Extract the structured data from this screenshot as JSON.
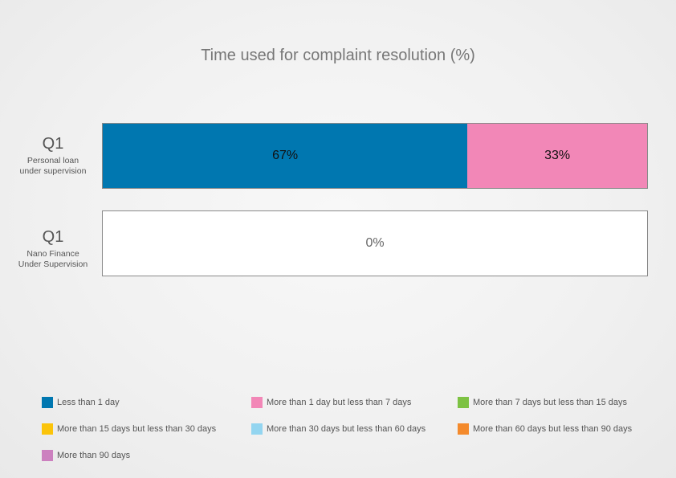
{
  "chart_data": {
    "type": "bar",
    "orientation": "horizontal",
    "stacked": true,
    "percent_scale": true,
    "title": "Time used for complaint resolution (%)",
    "categories": [
      {
        "label": "Q1",
        "sublabel": "Personal loan\nunder supervision"
      },
      {
        "label": "Q1",
        "sublabel": "Nano Finance\nUnder Supervision"
      }
    ],
    "series": [
      {
        "name": "Less than 1 day",
        "color": "#0077b0",
        "values": [
          67,
          0
        ]
      },
      {
        "name": "More than 1 day but less than 7 days",
        "color": "#f287b7",
        "values": [
          33,
          0
        ]
      },
      {
        "name": "More than 7 days but less than 15 days",
        "color": "#7dc243",
        "values": [
          0,
          0
        ]
      },
      {
        "name": "More than 15 days but less than 30 days",
        "color": "#fbc40a",
        "values": [
          0,
          0
        ]
      },
      {
        "name": "More than 30 days but less than 60 days",
        "color": "#93d5f0",
        "values": [
          0,
          0
        ]
      },
      {
        "name": "More than 60 days but less than 90 days",
        "color": "#f48a2c",
        "values": [
          0,
          0
        ]
      },
      {
        "name": "More than 90 days",
        "color": "#cc80bf",
        "values": [
          0,
          0
        ]
      }
    ],
    "data_labels": [
      [
        "67%",
        "33%"
      ],
      [
        "0%"
      ]
    ],
    "xlim": [
      0,
      100
    ],
    "legend_position": "bottom",
    "grid": false
  }
}
